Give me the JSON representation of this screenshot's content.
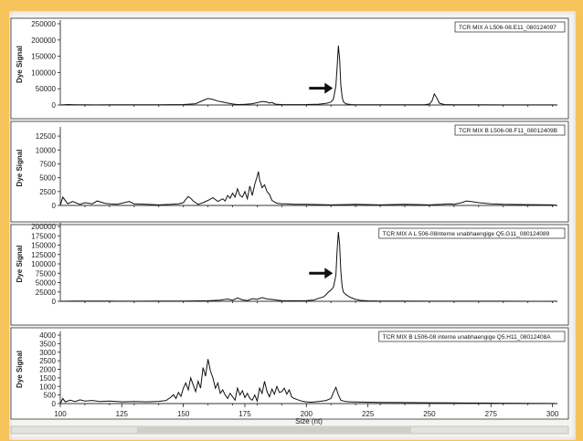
{
  "chart_data": [
    {
      "type": "line",
      "title": "TCR MIX A L506-08.E11_080124097",
      "ylabel": "Dye Signal",
      "yticks": [
        0,
        50000,
        100000,
        150000,
        200000,
        250000
      ],
      "yticks_text": [
        "0",
        "50000",
        "100000",
        "150000",
        "200000",
        "250000"
      ],
      "ylim": [
        0,
        250000
      ],
      "xlim": [
        100,
        302
      ],
      "arrow": true,
      "series": [
        {
          "x": [
            100,
            103,
            106,
            110,
            115,
            120,
            130,
            140,
            150,
            155,
            158,
            160,
            162,
            164,
            166,
            168,
            170,
            172,
            175,
            178,
            180,
            182,
            184,
            185,
            186,
            187,
            188,
            190,
            195,
            200,
            205,
            208,
            210,
            211,
            212,
            212.5,
            213,
            213.5,
            214,
            214.5,
            215,
            216,
            218,
            220,
            225,
            230,
            240,
            248,
            250,
            251,
            252,
            253,
            254,
            256,
            260,
            270,
            280,
            290,
            300,
            302
          ],
          "y": [
            0,
            1500,
            500,
            800,
            400,
            600,
            500,
            700,
            1500,
            4000,
            14000,
            20000,
            17000,
            12000,
            9000,
            6000,
            3000,
            1500,
            2000,
            4000,
            7000,
            11000,
            9000,
            6000,
            8000,
            4000,
            2000,
            1500,
            1000,
            1500,
            2500,
            5000,
            9000,
            18000,
            60000,
            120000,
            183000,
            140000,
            60000,
            25000,
            10000,
            4000,
            1500,
            800,
            500,
            600,
            500,
            800,
            3000,
            12000,
            34000,
            22000,
            6000,
            1500,
            600,
            500,
            400,
            300,
            200,
            0
          ]
        }
      ]
    },
    {
      "type": "line",
      "title": "TCR MIX B L506-08.F11_08012409B",
      "ylabel": "Dye Signal",
      "yticks": [
        0,
        2500,
        5000,
        7500,
        10000,
        12500
      ],
      "yticks_text": [
        "0",
        "2500",
        "5000",
        "7500",
        "10000",
        "12500"
      ],
      "ylim": [
        0,
        13500
      ],
      "xlim": [
        100,
        302
      ],
      "arrow": false,
      "series": [
        {
          "x": [
            100,
            101,
            103,
            105,
            108,
            110,
            113,
            115,
            118,
            120,
            123,
            125,
            128,
            130,
            135,
            140,
            145,
            148,
            150,
            151,
            152,
            153,
            154,
            156,
            158,
            160,
            162,
            164,
            166,
            167,
            168,
            169,
            170,
            171,
            172,
            173,
            174,
            175,
            176,
            177,
            178,
            179,
            180,
            180.5,
            181,
            181.5,
            182,
            183,
            184,
            185,
            186,
            188,
            190,
            192,
            195,
            200,
            210,
            220,
            230,
            240,
            250,
            255,
            258,
            260,
            263,
            265,
            267,
            270,
            275,
            280,
            290,
            300,
            302
          ],
          "y": [
            0,
            1500,
            300,
            700,
            200,
            500,
            300,
            800,
            400,
            300,
            200,
            400,
            700,
            300,
            200,
            100,
            200,
            300,
            500,
            1100,
            1600,
            1300,
            800,
            200,
            500,
            900,
            1400,
            700,
            1200,
            800,
            1800,
            1300,
            2200,
            1500,
            3000,
            1800,
            1500,
            2500,
            1200,
            3500,
            1800,
            3800,
            5200,
            6100,
            4600,
            3900,
            3200,
            3700,
            2500,
            2000,
            900,
            400,
            300,
            300,
            200,
            200,
            100,
            200,
            100,
            200,
            100,
            200,
            300,
            200,
            500,
            800,
            700,
            500,
            300,
            200,
            150,
            100,
            0
          ]
        }
      ]
    },
    {
      "type": "line",
      "title": "TCR MIX A L 506-08interne unabhaengige Q5.G11_080124089",
      "ylabel": "Dye Signal",
      "yticks": [
        0,
        25000,
        50000,
        75000,
        100000,
        125000,
        150000,
        175000,
        200000
      ],
      "yticks_text": [
        "0",
        "25000",
        "50000",
        "75000",
        "100000",
        "125000",
        "150000",
        "175000",
        "200000"
      ],
      "ylim": [
        0,
        200000
      ],
      "xlim": [
        100,
        302
      ],
      "arrow": true,
      "series": [
        {
          "x": [
            100,
            105,
            110,
            120,
            130,
            140,
            150,
            160,
            165,
            168,
            170,
            172,
            174,
            176,
            178,
            180,
            182,
            184,
            186,
            188,
            190,
            195,
            200,
            203,
            205,
            207,
            208,
            209,
            210,
            211,
            212,
            212.5,
            213,
            213.5,
            214,
            214.5,
            215,
            216,
            217,
            218,
            220,
            222,
            225,
            230,
            240,
            250,
            260,
            270,
            280,
            290,
            300,
            302
          ],
          "y": [
            0,
            800,
            400,
            500,
            300,
            500,
            800,
            1500,
            3000,
            6000,
            3000,
            9000,
            4000,
            2000,
            7000,
            5000,
            10000,
            6000,
            5000,
            3000,
            2000,
            1500,
            2000,
            3500,
            8000,
            12000,
            18000,
            25000,
            30000,
            38000,
            70000,
            140000,
            185000,
            150000,
            80000,
            40000,
            25000,
            18000,
            14000,
            10000,
            5000,
            2500,
            1200,
            600,
            400,
            300,
            250,
            200,
            150,
            100,
            50,
            0
          ]
        }
      ]
    },
    {
      "type": "line",
      "title": "TCR MIX B L506-08 interne unabhaengige Q5.H11_08012408A",
      "ylabel": "Dye Signal",
      "yticks": [
        0,
        500,
        1000,
        1500,
        2000,
        2500,
        3000,
        3500,
        4000
      ],
      "yticks_text": [
        "0",
        "500",
        "1000",
        "1500",
        "2000",
        "2500",
        "3000",
        "3500",
        "4000"
      ],
      "ylim": [
        0,
        4000
      ],
      "xlim": [
        100,
        302
      ],
      "xticks": [
        100,
        125,
        150,
        175,
        200,
        225,
        250,
        275,
        300
      ],
      "xticks_text": [
        "100",
        "125",
        "150",
        "175",
        "200",
        "225",
        "250",
        "275",
        "300"
      ],
      "xlabel": "Size (nt)",
      "arrow": false,
      "series": [
        {
          "x": [
            100,
            101,
            102,
            104,
            106,
            108,
            110,
            113,
            116,
            120,
            125,
            130,
            135,
            140,
            143,
            145,
            146,
            147,
            148,
            149,
            150,
            151,
            152,
            153,
            154,
            155,
            156,
            157,
            158,
            159,
            160,
            161,
            162,
            163,
            164,
            165,
            166,
            167,
            168,
            169,
            170,
            171,
            172,
            173,
            174,
            175,
            176,
            177,
            178,
            179,
            180,
            181,
            182,
            183,
            184,
            185,
            186,
            187,
            188,
            189,
            190,
            191,
            192,
            193,
            194,
            195,
            196,
            197,
            198,
            199,
            200,
            202,
            205,
            208,
            210,
            211,
            212,
            213,
            214,
            216,
            218,
            220,
            225,
            230,
            240,
            250,
            260,
            270,
            280,
            290,
            300,
            302
          ],
          "y": [
            0,
            300,
            100,
            200,
            120,
            220,
            150,
            180,
            120,
            150,
            100,
            120,
            100,
            130,
            180,
            380,
            520,
            300,
            650,
            420,
            900,
            1200,
            800,
            1500,
            1100,
            700,
            1300,
            900,
            2100,
            1600,
            2600,
            1900,
            1500,
            900,
            1200,
            600,
            800,
            500,
            300,
            600,
            400,
            200,
            900,
            500,
            750,
            350,
            600,
            300,
            200,
            500,
            150,
            900,
            600,
            1300,
            700,
            400,
            850,
            550,
            1000,
            650,
            700,
            900,
            550,
            800,
            400,
            300,
            250,
            200,
            150,
            120,
            100,
            80,
            120,
            180,
            300,
            650,
            950,
            500,
            200,
            120,
            100,
            90,
            80,
            70,
            60,
            50,
            40,
            30,
            20,
            10,
            5,
            0
          ]
        }
      ]
    }
  ]
}
